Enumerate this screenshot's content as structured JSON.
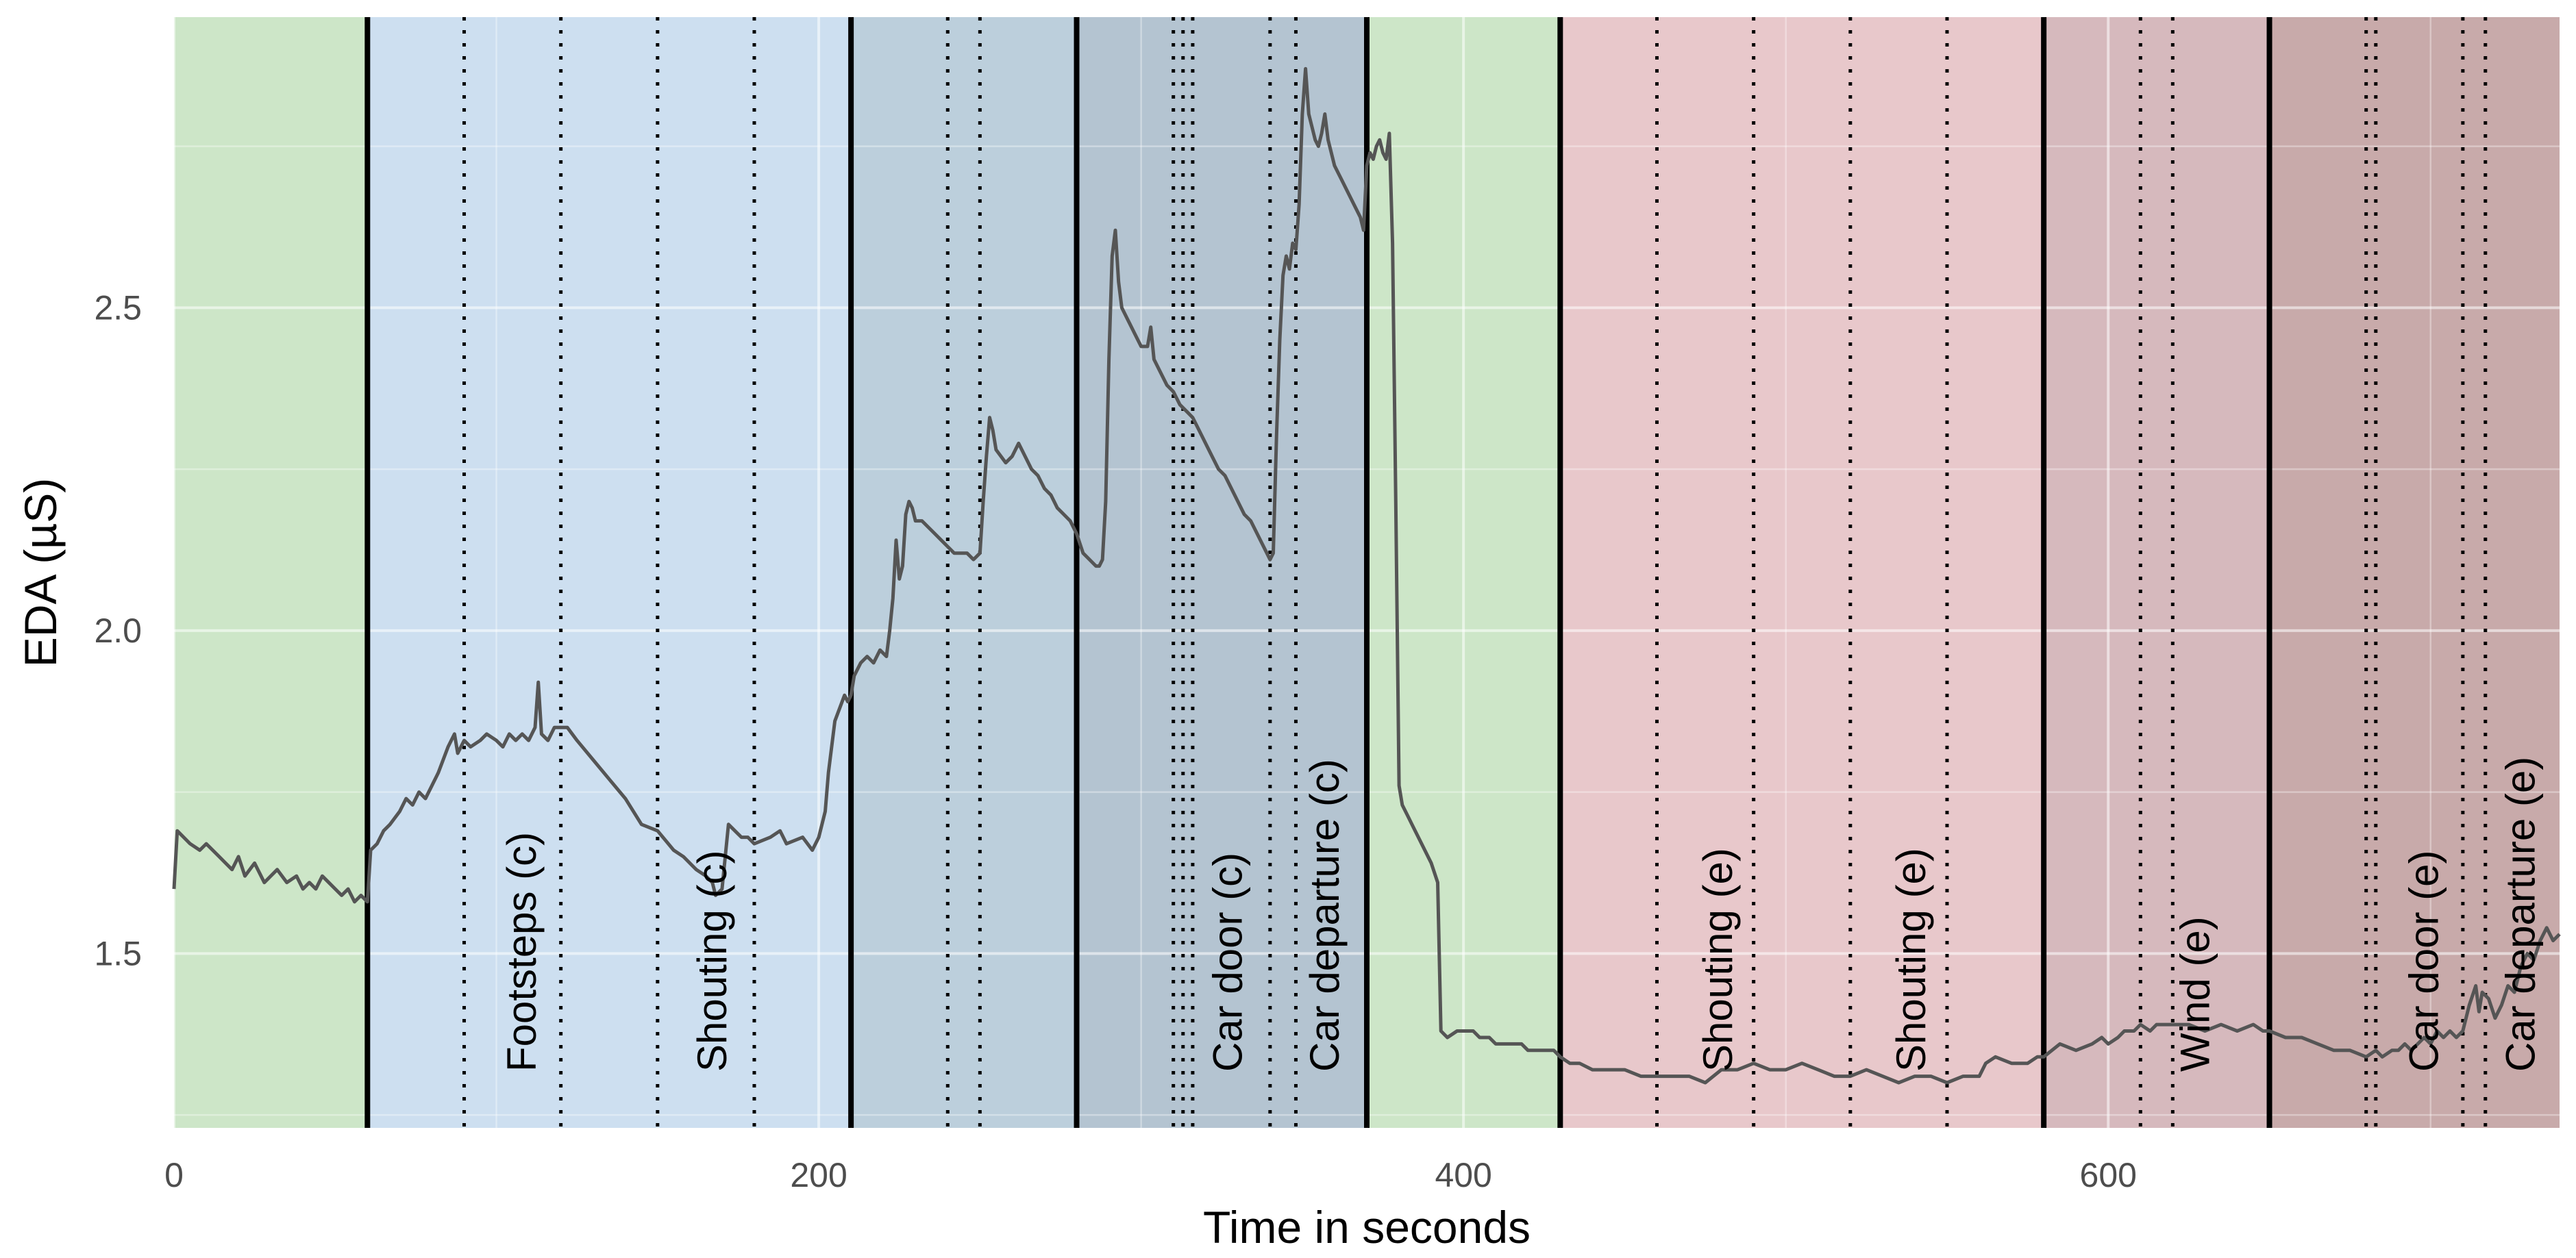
{
  "chart_data": {
    "type": "line",
    "title": "",
    "xlabel": "Time in seconds",
    "ylabel": "EDA (µS)",
    "xlim": [
      0,
      740
    ],
    "ylim": [
      1.23,
      2.95
    ],
    "x_ticks": [
      0,
      200,
      400,
      600
    ],
    "x_tick_labels": [
      "0",
      "200",
      "400",
      "600"
    ],
    "y_ticks": [
      1.5,
      2.0,
      2.5
    ],
    "y_tick_labels": [
      "1.5",
      "2.0",
      "2.5"
    ],
    "grid": true,
    "phases": [
      {
        "start": 0,
        "end": 60,
        "color": "#cde6c8"
      },
      {
        "start": 60,
        "end": 210,
        "color": "#cddff0"
      },
      {
        "start": 210,
        "end": 280,
        "color": "#bccfdc"
      },
      {
        "start": 280,
        "end": 370,
        "color": "#b4c4d1"
      },
      {
        "start": 370,
        "end": 430,
        "color": "#cde6c8"
      },
      {
        "start": 430,
        "end": 580,
        "color": "#e8c8cb"
      },
      {
        "start": 580,
        "end": 650,
        "color": "#d6b9bd"
      },
      {
        "start": 650,
        "end": 740,
        "color": "#c8aaaa"
      }
    ],
    "phase_boundaries": [
      60,
      210,
      280,
      370,
      430,
      580,
      650
    ],
    "event_markers": [
      90,
      120,
      150,
      180,
      240,
      250,
      310,
      313,
      316,
      340,
      348,
      460,
      490,
      520,
      550,
      610,
      620,
      680,
      683,
      710,
      717
    ],
    "event_labels": [
      {
        "x": 108,
        "text": "Footsteps (c)"
      },
      {
        "x": 167,
        "text": "Shouting (c)"
      },
      {
        "x": 327,
        "text": "Car door (c)"
      },
      {
        "x": 357,
        "text": "Car departure (c)"
      },
      {
        "x": 479,
        "text": "Shouting (e)"
      },
      {
        "x": 539,
        "text": "Shouting (e)"
      },
      {
        "x": 627,
        "text": "Wind (e)"
      },
      {
        "x": 698,
        "text": "Car door (e)"
      },
      {
        "x": 728,
        "text": "Car departure (e)"
      }
    ],
    "series": [
      {
        "color": "#555555",
        "x": [
          0,
          1,
          3,
          5,
          8,
          10,
          12,
          14,
          16,
          18,
          20,
          22,
          25,
          28,
          30,
          32,
          35,
          38,
          40,
          42,
          44,
          46,
          48,
          50,
          52,
          54,
          56,
          58,
          60,
          61,
          63,
          65,
          67,
          70,
          72,
          74,
          76,
          78,
          80,
          82,
          85,
          87,
          88,
          90,
          92,
          95,
          97,
          100,
          102,
          104,
          106,
          108,
          110,
          112,
          113,
          114,
          116,
          118,
          120,
          122,
          125,
          130,
          135,
          140,
          145,
          150,
          155,
          158,
          160,
          162,
          165,
          167,
          168,
          170,
          171,
          172,
          174,
          176,
          178,
          180,
          185,
          188,
          190,
          195,
          198,
          200,
          202,
          203,
          205,
          208,
          209,
          210,
          211,
          213,
          215,
          217,
          219,
          221,
          222,
          223,
          224,
          225,
          226,
          227,
          228,
          229,
          230,
          232,
          234,
          236,
          238,
          240,
          242,
          244,
          246,
          248,
          250,
          251,
          252,
          253,
          254,
          255,
          258,
          260,
          262,
          264,
          266,
          268,
          270,
          272,
          274,
          276,
          278,
          279,
          280,
          282,
          284,
          286,
          287,
          288,
          289,
          290,
          291,
          292,
          293,
          294,
          296,
          298,
          300,
          302,
          303,
          304,
          306,
          308,
          310,
          312,
          314,
          316,
          318,
          320,
          322,
          324,
          326,
          328,
          330,
          332,
          334,
          336,
          338,
          340,
          341,
          342,
          343,
          344,
          345,
          346,
          347,
          348,
          349,
          350,
          351,
          352,
          353,
          354,
          355,
          356,
          357,
          358,
          359,
          360,
          362,
          364,
          366,
          368,
          369,
          370,
          371,
          372,
          373,
          374,
          375,
          376,
          377,
          378,
          379,
          380,
          381,
          382,
          383,
          384,
          385,
          386,
          388,
          390,
          392,
          393,
          395,
          398,
          400,
          403,
          405,
          408,
          410,
          413,
          415,
          418,
          420,
          423,
          425,
          428,
          430,
          433,
          436,
          440,
          445,
          450,
          455,
          460,
          465,
          470,
          475,
          480,
          485,
          490,
          495,
          500,
          505,
          510,
          515,
          520,
          525,
          530,
          535,
          540,
          545,
          550,
          555,
          560,
          562,
          565,
          570,
          575,
          578,
          580,
          585,
          590,
          595,
          598,
          600,
          603,
          605,
          608,
          610,
          613,
          615,
          620,
          625,
          630,
          635,
          640,
          645,
          648,
          650,
          655,
          660,
          665,
          670,
          675,
          680,
          683,
          685,
          688,
          690,
          692,
          694,
          696,
          698,
          700,
          702,
          704,
          706,
          708,
          710,
          712,
          714,
          715,
          716,
          718,
          720,
          722,
          724,
          726,
          728,
          730,
          732,
          734,
          736,
          738,
          740
        ],
        "y": [
          1.6,
          1.69,
          1.68,
          1.67,
          1.66,
          1.67,
          1.66,
          1.65,
          1.64,
          1.63,
          1.65,
          1.62,
          1.64,
          1.61,
          1.62,
          1.63,
          1.61,
          1.62,
          1.6,
          1.61,
          1.6,
          1.62,
          1.61,
          1.6,
          1.59,
          1.6,
          1.58,
          1.59,
          1.58,
          1.66,
          1.67,
          1.69,
          1.7,
          1.72,
          1.74,
          1.73,
          1.75,
          1.74,
          1.76,
          1.78,
          1.82,
          1.84,
          1.81,
          1.83,
          1.82,
          1.83,
          1.84,
          1.83,
          1.82,
          1.84,
          1.83,
          1.84,
          1.83,
          1.85,
          1.92,
          1.84,
          1.83,
          1.85,
          1.85,
          1.85,
          1.83,
          1.8,
          1.77,
          1.74,
          1.7,
          1.69,
          1.66,
          1.65,
          1.64,
          1.63,
          1.62,
          1.61,
          1.59,
          1.6,
          1.65,
          1.7,
          1.69,
          1.68,
          1.68,
          1.67,
          1.68,
          1.69,
          1.67,
          1.68,
          1.66,
          1.68,
          1.72,
          1.78,
          1.86,
          1.9,
          1.89,
          1.9,
          1.93,
          1.95,
          1.96,
          1.95,
          1.97,
          1.96,
          2.0,
          2.05,
          2.14,
          2.08,
          2.1,
          2.18,
          2.2,
          2.19,
          2.17,
          2.17,
          2.16,
          2.15,
          2.14,
          2.13,
          2.12,
          2.12,
          2.12,
          2.11,
          2.12,
          2.2,
          2.27,
          2.33,
          2.31,
          2.28,
          2.26,
          2.27,
          2.29,
          2.27,
          2.25,
          2.24,
          2.22,
          2.21,
          2.19,
          2.18,
          2.17,
          2.16,
          2.15,
          2.12,
          2.11,
          2.1,
          2.1,
          2.11,
          2.2,
          2.42,
          2.58,
          2.62,
          2.54,
          2.5,
          2.48,
          2.46,
          2.44,
          2.44,
          2.47,
          2.42,
          2.4,
          2.38,
          2.37,
          2.35,
          2.34,
          2.33,
          2.31,
          2.29,
          2.27,
          2.25,
          2.24,
          2.22,
          2.2,
          2.18,
          2.17,
          2.15,
          2.13,
          2.11,
          2.12,
          2.3,
          2.45,
          2.55,
          2.58,
          2.56,
          2.6,
          2.59,
          2.66,
          2.8,
          2.87,
          2.8,
          2.78,
          2.76,
          2.75,
          2.77,
          2.8,
          2.76,
          2.74,
          2.72,
          2.7,
          2.68,
          2.66,
          2.64,
          2.62,
          2.72,
          2.74,
          2.73,
          2.75,
          2.76,
          2.74,
          2.73,
          2.77,
          2.6,
          2.2,
          1.76,
          1.73,
          1.72,
          1.71,
          1.7,
          1.69,
          1.68,
          1.66,
          1.64,
          1.61,
          1.38,
          1.37,
          1.38,
          1.38,
          1.38,
          1.37,
          1.37,
          1.36,
          1.36,
          1.36,
          1.36,
          1.35,
          1.35,
          1.35,
          1.35,
          1.34,
          1.33,
          1.33,
          1.32,
          1.32,
          1.32,
          1.31,
          1.31,
          1.31,
          1.31,
          1.3,
          1.32,
          1.32,
          1.33,
          1.32,
          1.32,
          1.33,
          1.32,
          1.31,
          1.31,
          1.32,
          1.31,
          1.3,
          1.31,
          1.31,
          1.3,
          1.31,
          1.31,
          1.33,
          1.34,
          1.33,
          1.33,
          1.34,
          1.34,
          1.36,
          1.35,
          1.36,
          1.37,
          1.36,
          1.37,
          1.38,
          1.38,
          1.39,
          1.38,
          1.39,
          1.39,
          1.39,
          1.38,
          1.39,
          1.38,
          1.39,
          1.38,
          1.38,
          1.37,
          1.37,
          1.36,
          1.35,
          1.35,
          1.34,
          1.35,
          1.34,
          1.35,
          1.35,
          1.36,
          1.35,
          1.36,
          1.37,
          1.36,
          1.38,
          1.37,
          1.38,
          1.37,
          1.38,
          1.42,
          1.45,
          1.41,
          1.44,
          1.43,
          1.4,
          1.42,
          1.45,
          1.44,
          1.48,
          1.5,
          1.49,
          1.52,
          1.54,
          1.52,
          1.53
        ]
      }
    ]
  }
}
